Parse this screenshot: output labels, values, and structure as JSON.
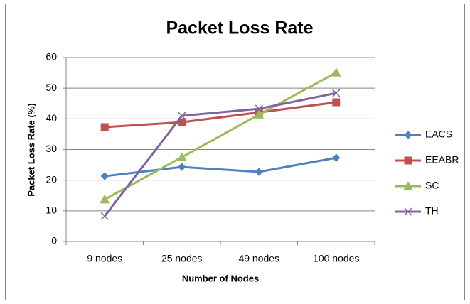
{
  "chart_data": {
    "type": "line",
    "title": "Packet Loss Rate",
    "x_label": "Number of Nodes",
    "y_label": "Packet Loss Rate (%)",
    "categories": [
      "9 nodes",
      "25 nodes",
      "49 nodes",
      "100 nodes"
    ],
    "series": [
      {
        "name": "EACS",
        "color": "#4f81bd",
        "marker": "diamond",
        "values": [
          21.3,
          24.3,
          22.7,
          27.3
        ]
      },
      {
        "name": "EEABR",
        "color": "#c0504d",
        "marker": "square",
        "values": [
          37.3,
          38.9,
          42.1,
          45.4
        ]
      },
      {
        "name": "SC",
        "color": "#9bbb59",
        "marker": "triangle",
        "values": [
          13.7,
          27.5,
          41.4,
          55.1
        ]
      },
      {
        "name": "TH",
        "color": "#8064a2",
        "marker": "x",
        "values": [
          8.3,
          41,
          43.3,
          48.4
        ]
      }
    ],
    "ylim": [
      0,
      60
    ],
    "yticks": [
      0,
      10,
      20,
      30,
      40,
      50,
      60
    ],
    "grid": true,
    "legend": "right"
  }
}
